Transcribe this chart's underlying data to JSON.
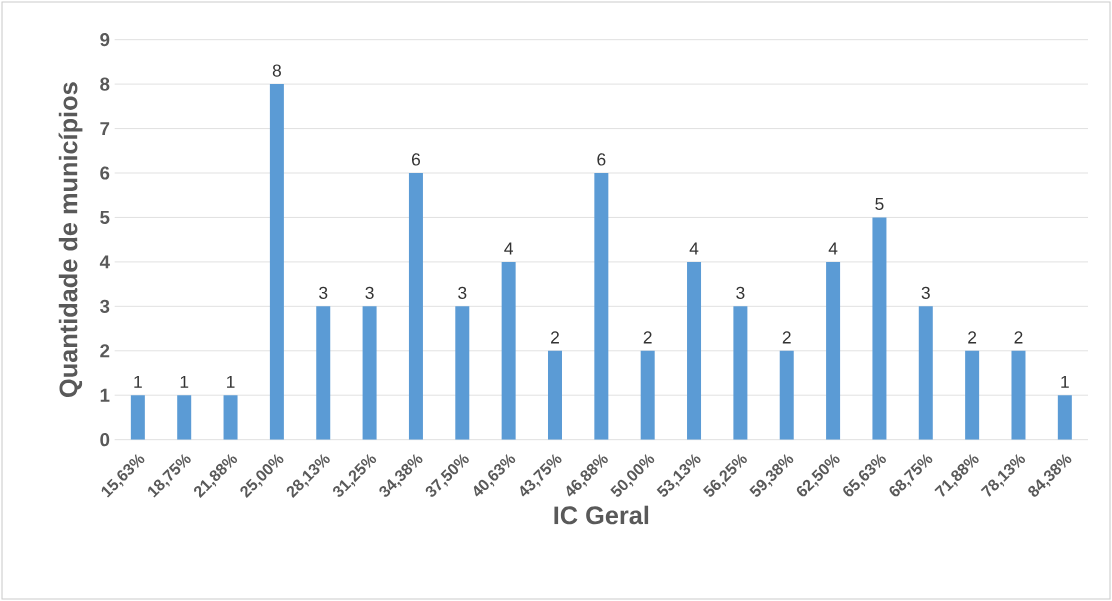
{
  "chart_data": {
    "type": "bar",
    "xlabel": "IC Geral",
    "ylabel": "Quantidade de municípios",
    "categories": [
      "15,63%",
      "18,75%",
      "21,88%",
      "25,00%",
      "28,13%",
      "31,25%",
      "34,38%",
      "37,50%",
      "40,63%",
      "43,75%",
      "46,88%",
      "50,00%",
      "53,13%",
      "56,25%",
      "59,38%",
      "62,50%",
      "65,63%",
      "68,75%",
      "71,88%",
      "78,13%",
      "84,38%"
    ],
    "values": [
      1,
      1,
      1,
      8,
      3,
      3,
      6,
      3,
      4,
      2,
      6,
      2,
      4,
      3,
      2,
      4,
      5,
      3,
      2,
      2,
      1
    ],
    "color": "#5b9bd5",
    "ylim": [
      0,
      9
    ],
    "yticks": [
      0,
      1,
      2,
      3,
      4,
      5,
      6,
      7,
      8,
      9
    ],
    "grid": "y",
    "data_labels": true
  }
}
